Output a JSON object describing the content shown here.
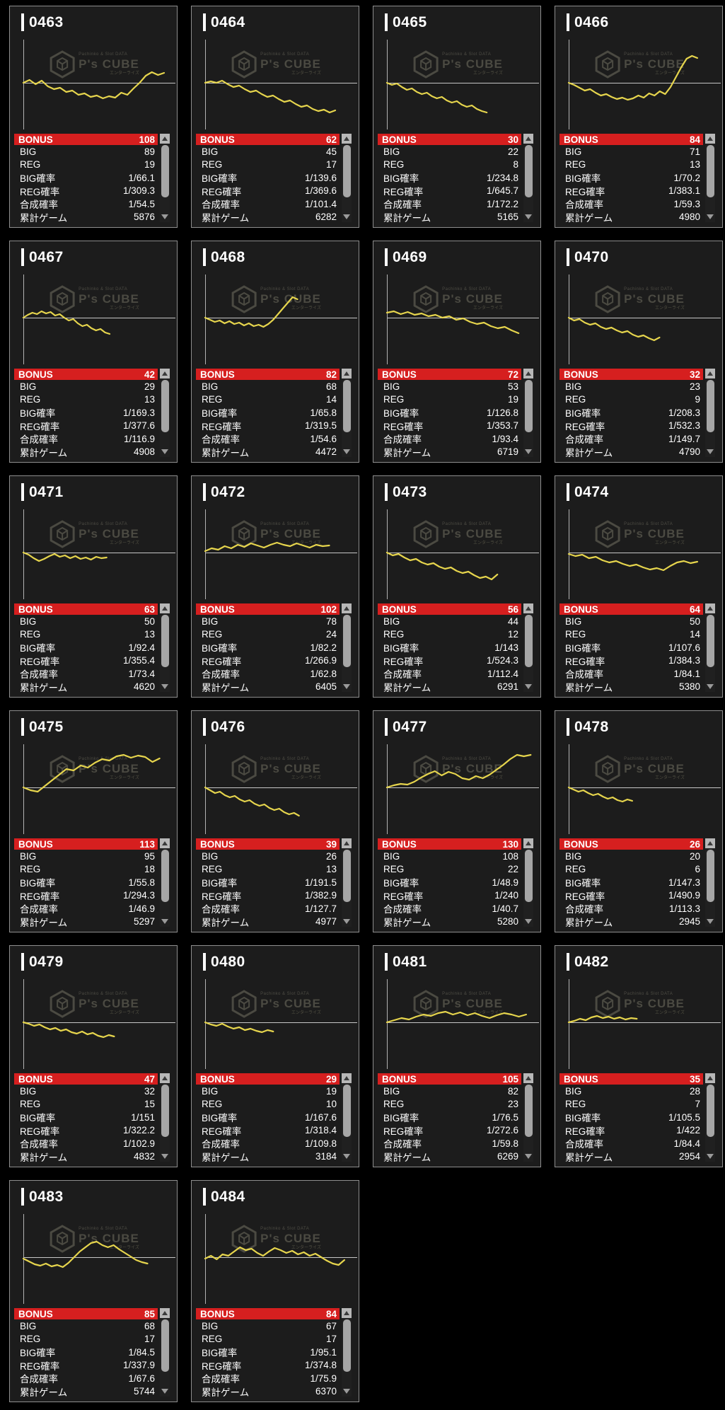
{
  "colors": {
    "accent_red": "#d61f1f",
    "line_yellow": "#e6d54d"
  },
  "table_labels": [
    "BONUS",
    "BIG",
    "REG",
    "BIG確率",
    "REG確率",
    "合成確率",
    "累計ゲーム"
  ],
  "watermark": {
    "top": "Pachinko & Slot DATA",
    "title": "P's CUBE",
    "tagline": "エンターライズ"
  },
  "machines": [
    {
      "id": "0463",
      "stats": [
        "108",
        "89",
        "19",
        "1/66.1",
        "1/309.3",
        "1/54.5",
        "5876"
      ],
      "chart": {
        "end": 0.93,
        "values": [
          0,
          4,
          -2,
          3,
          -5,
          -9,
          -7,
          -13,
          -11,
          -17,
          -15,
          -20,
          -18,
          -22,
          -19,
          -21,
          -14,
          -17,
          -8,
          0,
          10,
          15,
          11,
          14
        ]
      }
    },
    {
      "id": "0464",
      "stats": [
        "62",
        "45",
        "17",
        "1/139.6",
        "1/369.6",
        "1/101.4",
        "6282"
      ],
      "chart": {
        "end": 0.86,
        "values": [
          0,
          2,
          0,
          3,
          -2,
          -6,
          -4,
          -9,
          -13,
          -11,
          -16,
          -20,
          -18,
          -23,
          -27,
          -25,
          -30,
          -34,
          -32,
          -37,
          -40,
          -38,
          -42,
          -39
        ]
      }
    },
    {
      "id": "0465",
      "stats": [
        "30",
        "22",
        "8",
        "1/234.8",
        "1/645.7",
        "1/172.2",
        "5165"
      ],
      "chart": {
        "end": 0.66,
        "values": [
          0,
          -3,
          -1,
          -6,
          -10,
          -8,
          -13,
          -16,
          -14,
          -19,
          -22,
          -20,
          -25,
          -28,
          -26,
          -31,
          -34,
          -32,
          -37,
          -40,
          -42
        ]
      }
    },
    {
      "id": "0466",
      "stats": [
        "84",
        "71",
        "13",
        "1/70.2",
        "1/383.1",
        "1/59.3",
        "4980"
      ],
      "chart": {
        "end": 0.85,
        "values": [
          0,
          -3,
          -7,
          -11,
          -9,
          -14,
          -18,
          -16,
          -20,
          -23,
          -21,
          -24,
          -22,
          -18,
          -21,
          -15,
          -18,
          -12,
          -16,
          -6,
          8,
          22,
          34,
          38,
          35
        ]
      }
    },
    {
      "id": "0467",
      "stats": [
        "42",
        "29",
        "13",
        "1/169.3",
        "1/377.6",
        "1/116.9",
        "4908"
      ],
      "chart": {
        "end": 0.57,
        "values": [
          0,
          4,
          7,
          5,
          9,
          6,
          8,
          3,
          5,
          0,
          -4,
          -2,
          -8,
          -12,
          -10,
          -15,
          -18,
          -16,
          -21,
          -23
        ]
      }
    },
    {
      "id": "0468",
      "stats": [
        "82",
        "68",
        "14",
        "1/65.8",
        "1/319.5",
        "1/54.6",
        "4472"
      ],
      "chart": {
        "end": 0.61,
        "values": [
          0,
          -3,
          -6,
          -4,
          -8,
          -5,
          -9,
          -7,
          -11,
          -8,
          -12,
          -10,
          -13,
          -9,
          -3,
          5,
          13,
          21,
          29,
          26
        ]
      }
    },
    {
      "id": "0469",
      "stats": [
        "72",
        "53",
        "19",
        "1/126.8",
        "1/353.7",
        "1/93.4",
        "6719"
      ],
      "chart": {
        "end": 0.87,
        "values": [
          7,
          9,
          5,
          8,
          4,
          6,
          2,
          4,
          0,
          2,
          -3,
          -1,
          -6,
          -9,
          -7,
          -12,
          -15,
          -13,
          -18,
          -22
        ]
      }
    },
    {
      "id": "0470",
      "stats": [
        "32",
        "23",
        "9",
        "1/208.3",
        "1/532.3",
        "1/149.7",
        "4790"
      ],
      "chart": {
        "end": 0.6,
        "values": [
          0,
          -4,
          -2,
          -7,
          -10,
          -8,
          -13,
          -16,
          -14,
          -18,
          -21,
          -19,
          -24,
          -27,
          -25,
          -29,
          -32,
          -28
        ]
      }
    },
    {
      "id": "0471",
      "stats": [
        "63",
        "50",
        "13",
        "1/92.4",
        "1/355.4",
        "1/73.4",
        "4620"
      ],
      "chart": {
        "end": 0.55,
        "values": [
          0,
          -3,
          -8,
          -12,
          -9,
          -5,
          -2,
          -6,
          -4,
          -8,
          -5,
          -9,
          -7,
          -10,
          -6,
          -8,
          -7
        ]
      }
    },
    {
      "id": "0472",
      "stats": [
        "102",
        "78",
        "24",
        "1/82.2",
        "1/266.9",
        "1/62.8",
        "6405"
      ],
      "chart": {
        "end": 0.82,
        "values": [
          2,
          6,
          4,
          9,
          6,
          11,
          8,
          13,
          10,
          7,
          11,
          14,
          11,
          9,
          13,
          10,
          7,
          11,
          9,
          10
        ]
      }
    },
    {
      "id": "0473",
      "stats": [
        "56",
        "44",
        "12",
        "1/143",
        "1/524.3",
        "1/112.4",
        "6291"
      ],
      "chart": {
        "end": 0.73,
        "values": [
          0,
          -4,
          -2,
          -7,
          -11,
          -9,
          -14,
          -17,
          -15,
          -20,
          -23,
          -21,
          -26,
          -29,
          -27,
          -32,
          -36,
          -34,
          -38,
          -31
        ]
      }
    },
    {
      "id": "0474",
      "stats": [
        "64",
        "50",
        "14",
        "1/107.6",
        "1/384.3",
        "1/84.1",
        "5380"
      ],
      "chart": {
        "end": 0.85,
        "values": [
          -2,
          -5,
          -3,
          -8,
          -6,
          -11,
          -14,
          -12,
          -16,
          -19,
          -17,
          -21,
          -24,
          -22,
          -25,
          -19,
          -14,
          -12,
          -15,
          -13
        ]
      }
    },
    {
      "id": "0475",
      "stats": [
        "113",
        "95",
        "18",
        "1/55.8",
        "1/294.3",
        "1/46.9",
        "5297"
      ],
      "chart": {
        "end": 0.9,
        "values": [
          0,
          -4,
          -6,
          2,
          10,
          18,
          26,
          24,
          31,
          28,
          35,
          40,
          38,
          44,
          46,
          42,
          45,
          43,
          36,
          41
        ]
      }
    },
    {
      "id": "0476",
      "stats": [
        "39",
        "26",
        "13",
        "1/191.5",
        "1/382.9",
        "1/127.7",
        "4977"
      ],
      "chart": {
        "end": 0.62,
        "values": [
          0,
          -4,
          -8,
          -6,
          -11,
          -14,
          -12,
          -17,
          -20,
          -18,
          -23,
          -26,
          -24,
          -29,
          -32,
          -30,
          -35,
          -38,
          -36,
          -40
        ]
      }
    },
    {
      "id": "0477",
      "stats": [
        "130",
        "108",
        "22",
        "1/48.9",
        "1/240",
        "1/40.7",
        "5280"
      ],
      "chart": {
        "end": 0.95,
        "values": [
          0,
          3,
          5,
          4,
          8,
          14,
          19,
          23,
          17,
          22,
          19,
          13,
          11,
          16,
          13,
          18,
          25,
          32,
          40,
          46,
          44,
          46
        ]
      }
    },
    {
      "id": "0478",
      "stats": [
        "26",
        "20",
        "6",
        "1/147.3",
        "1/490.9",
        "1/113.3",
        "2945"
      ],
      "chart": {
        "end": 0.42,
        "values": [
          0,
          -3,
          -6,
          -4,
          -8,
          -11,
          -9,
          -13,
          -16,
          -14,
          -18,
          -20,
          -17,
          -19
        ]
      }
    },
    {
      "id": "0479",
      "stats": [
        "47",
        "32",
        "15",
        "1/151",
        "1/322.2",
        "1/102.9",
        "4832"
      ],
      "chart": {
        "end": 0.6,
        "values": [
          0,
          -2,
          -5,
          -3,
          -7,
          -10,
          -8,
          -12,
          -10,
          -14,
          -16,
          -13,
          -17,
          -15,
          -19,
          -21,
          -18,
          -20
        ]
      }
    },
    {
      "id": "0480",
      "stats": [
        "29",
        "19",
        "10",
        "1/167.6",
        "1/318.4",
        "1/109.8",
        "3184"
      ],
      "chart": {
        "end": 0.45,
        "values": [
          0,
          -3,
          -5,
          -2,
          -6,
          -9,
          -7,
          -11,
          -9,
          -12,
          -14,
          -11,
          -13
        ]
      }
    },
    {
      "id": "0481",
      "stats": [
        "105",
        "82",
        "23",
        "1/76.5",
        "1/272.6",
        "1/59.8",
        "6269"
      ],
      "chart": {
        "end": 0.92,
        "values": [
          0,
          3,
          6,
          4,
          8,
          11,
          9,
          13,
          15,
          11,
          14,
          10,
          13,
          9,
          6,
          10,
          13,
          11,
          8,
          11
        ]
      }
    },
    {
      "id": "0482",
      "stats": [
        "35",
        "28",
        "7",
        "1/105.5",
        "1/422",
        "1/84.4",
        "2954"
      ],
      "chart": {
        "end": 0.45,
        "values": [
          0,
          2,
          5,
          3,
          7,
          9,
          6,
          8,
          5,
          7,
          4,
          6,
          5
        ]
      }
    },
    {
      "id": "0483",
      "stats": [
        "85",
        "68",
        "17",
        "1/84.5",
        "1/337.9",
        "1/67.6",
        "5744"
      ],
      "chart": {
        "end": 0.82,
        "values": [
          -2,
          -6,
          -10,
          -12,
          -9,
          -13,
          -11,
          -14,
          -8,
          0,
          8,
          14,
          20,
          22,
          17,
          14,
          17,
          11,
          6,
          1,
          -4,
          -7,
          -9
        ]
      }
    },
    {
      "id": "0484",
      "stats": [
        "84",
        "67",
        "17",
        "1/95.1",
        "1/374.8",
        "1/75.9",
        "6370"
      ],
      "chart": {
        "end": 0.92,
        "values": [
          -2,
          2,
          -3,
          4,
          2,
          8,
          14,
          10,
          12,
          6,
          2,
          8,
          13,
          10,
          6,
          9,
          4,
          7,
          2,
          5,
          0,
          -5,
          -9,
          -11,
          -4
        ]
      }
    }
  ]
}
